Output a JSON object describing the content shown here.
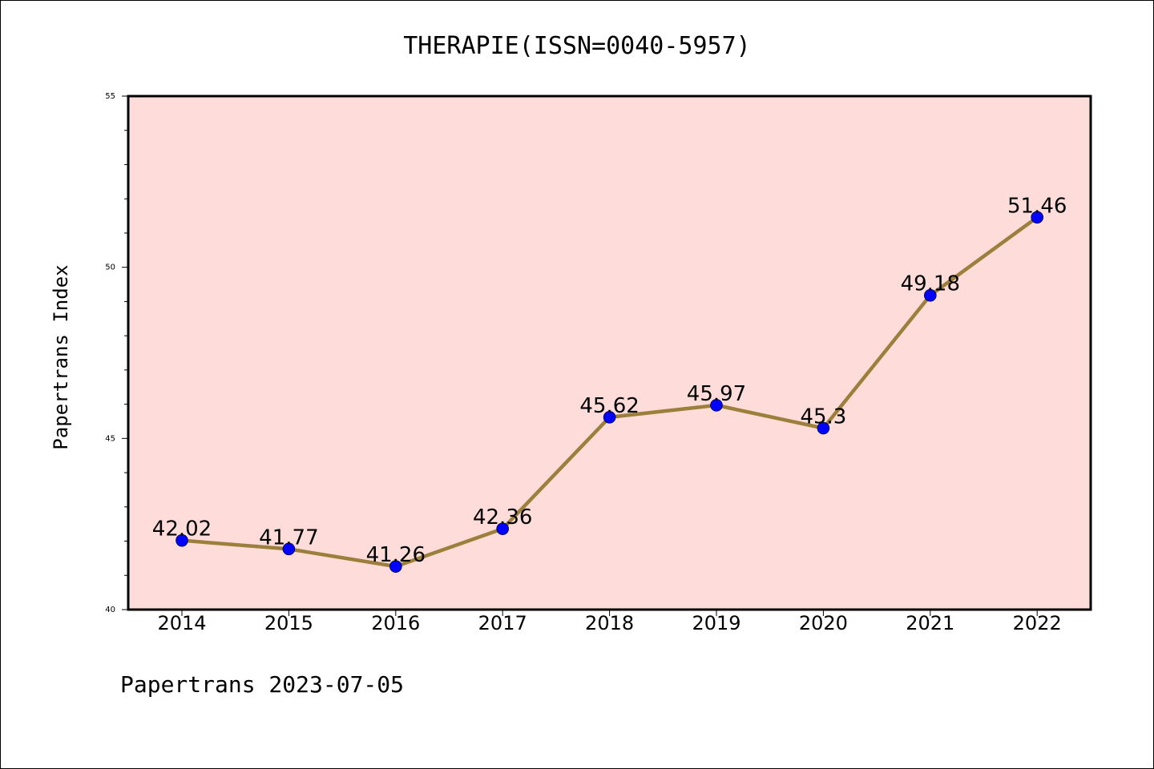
{
  "chart_data": {
    "type": "line",
    "title": "THERAPIE(ISSN=0040-5957)",
    "xlabel": "",
    "ylabel": "Papertrans Index",
    "categories": [
      "2014",
      "2015",
      "2016",
      "2017",
      "2018",
      "2019",
      "2020",
      "2021",
      "2022"
    ],
    "series": [
      {
        "values": [
          42.02,
          41.77,
          41.26,
          42.36,
          45.62,
          45.97,
          45.3,
          49.18,
          51.46
        ],
        "labels": [
          "42.02",
          "41.77",
          "41.26",
          "42.36",
          "45.62",
          "45.97",
          "45.3",
          "49.18",
          "51.46"
        ]
      }
    ],
    "ylim": [
      40,
      55
    ],
    "yticks": [
      "40",
      "45",
      "50",
      "55"
    ],
    "grid": false,
    "colors": {
      "plot_background": "#fddcd9",
      "line": "#9b7f3a",
      "marker": "#0000ff"
    }
  },
  "footer": "Papertrans 2023-07-05"
}
